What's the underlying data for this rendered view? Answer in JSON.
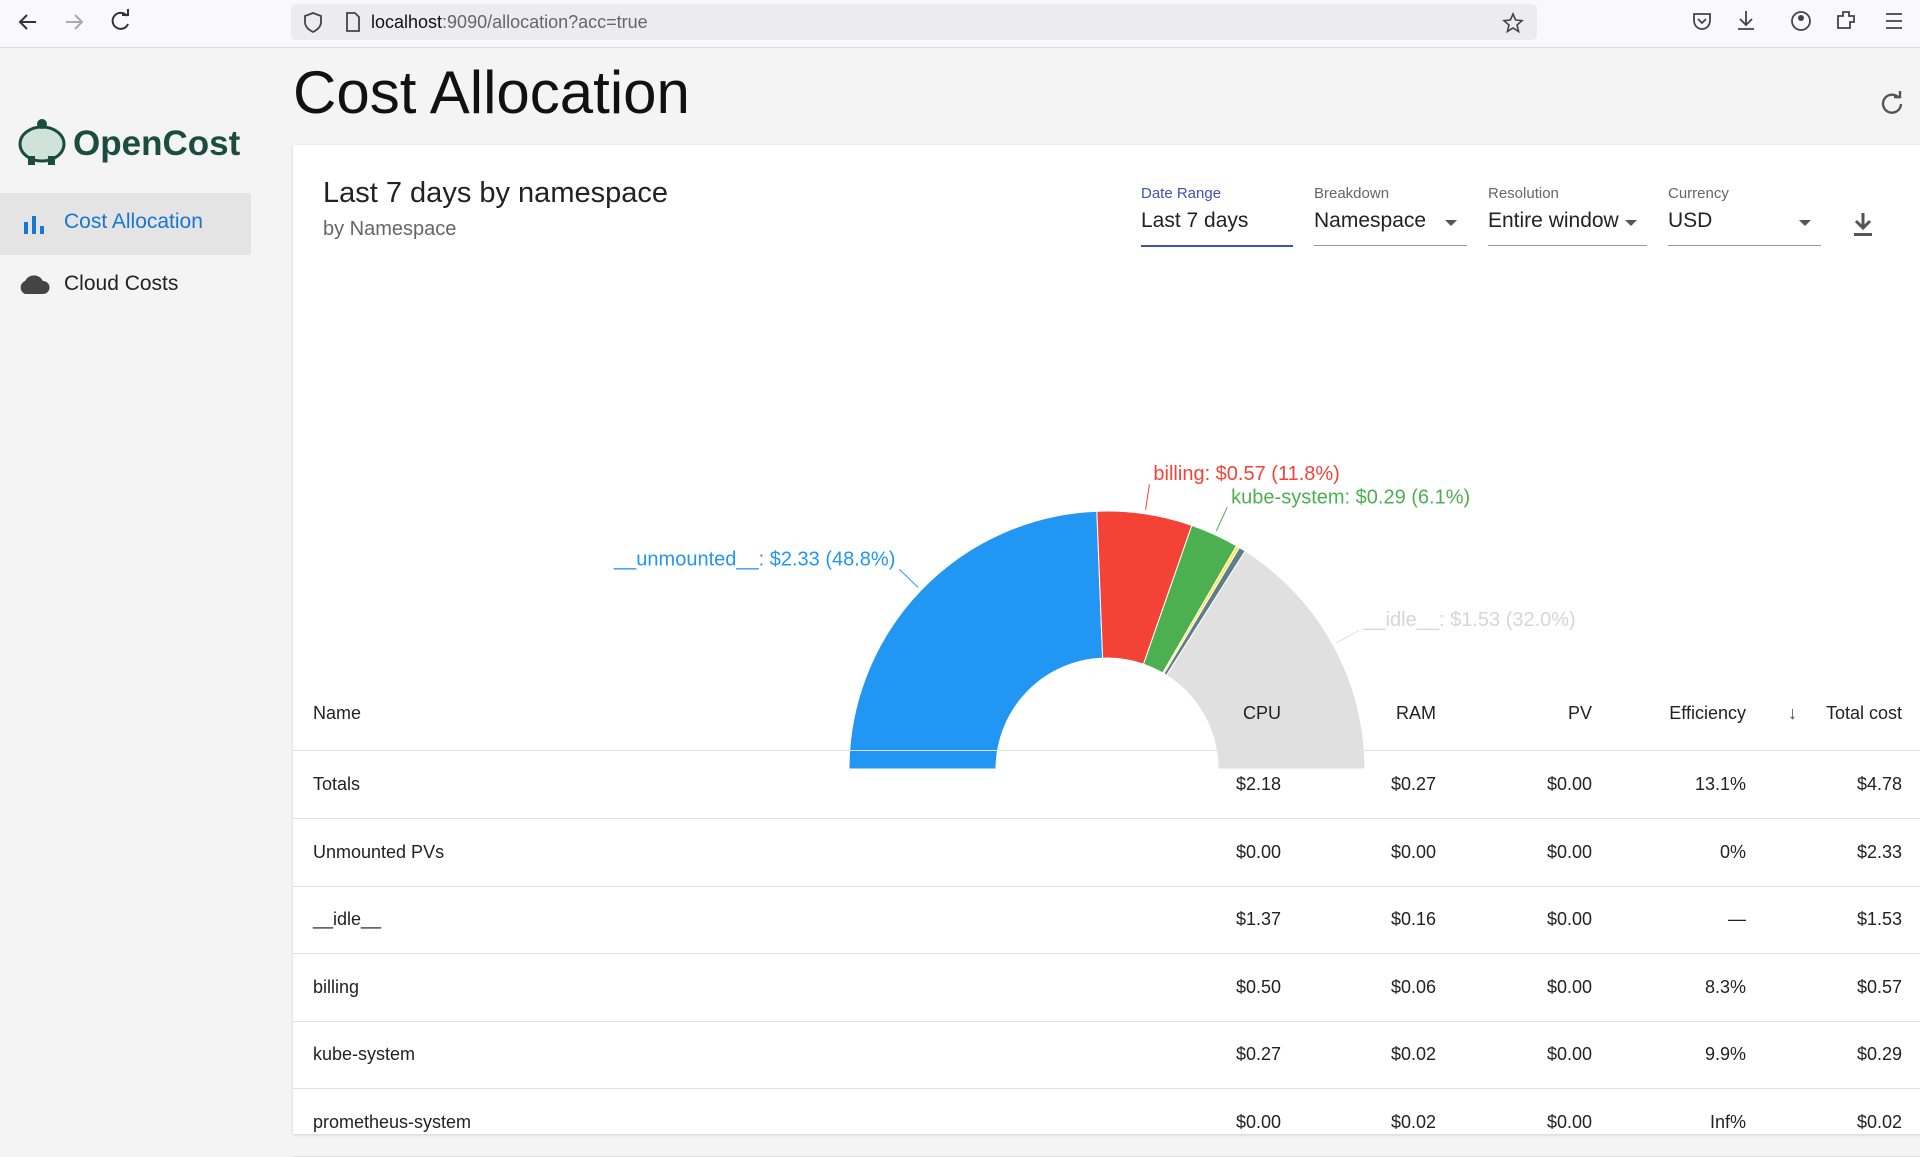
{
  "browser": {
    "url_host": "localhost",
    "url_path": ":9090/allocation?acc=true"
  },
  "sidebar": {
    "brand": "OpenCost",
    "nav": [
      "Cost Allocation",
      "Cloud Costs"
    ]
  },
  "header": {
    "title": "Cost Allocation"
  },
  "panel": {
    "title": "Last 7 days by namespace",
    "subtitle": "by Namespace",
    "filters": [
      {
        "label": "Date Range",
        "value": "Last 7 days"
      },
      {
        "label": "Breakdown",
        "value": "Namespace"
      },
      {
        "label": "Resolution",
        "value": "Entire window"
      },
      {
        "label": "Currency",
        "value": "USD"
      }
    ]
  },
  "chart_data": {
    "type": "pie",
    "values": [
      2.33,
      0.57,
      0.29,
      0.02,
      0.04,
      1.53
    ],
    "value_labels": [
      "__unmounted__: $2.33 (48.8%)",
      "billing: $0.57 (11.8%)",
      "kube-system: $0.29 (6.1%)",
      null,
      null,
      "__idle__: $1.53 (32.0%)"
    ],
    "colors": [
      "#2196f3",
      "#f44336",
      "#4caf50",
      "#ffeb3b",
      "#607d8b",
      "#e0e0e0"
    ]
  },
  "table": {
    "header": [
      "Name",
      "CPU",
      "RAM",
      "PV",
      "Efficiency",
      "Total cost"
    ],
    "rows": [
      [
        "Totals",
        "$2.18",
        "$0.27",
        "$0.00",
        "13.1%",
        "$4.78"
      ],
      [
        "Unmounted PVs",
        "$0.00",
        "$0.00",
        "$0.00",
        "0%",
        "$2.33"
      ],
      [
        "__idle__",
        "$1.37",
        "$0.16",
        "$0.00",
        "—",
        "$1.53"
      ],
      [
        "billing",
        "$0.50",
        "$0.06",
        "$0.00",
        "8.3%",
        "$0.57"
      ],
      [
        "kube-system",
        "$0.27",
        "$0.02",
        "$0.00",
        "9.9%",
        "$0.29"
      ],
      [
        "prometheus-system",
        "$0.00",
        "$0.02",
        "$0.00",
        "Inf%",
        "$0.02"
      ]
    ]
  }
}
